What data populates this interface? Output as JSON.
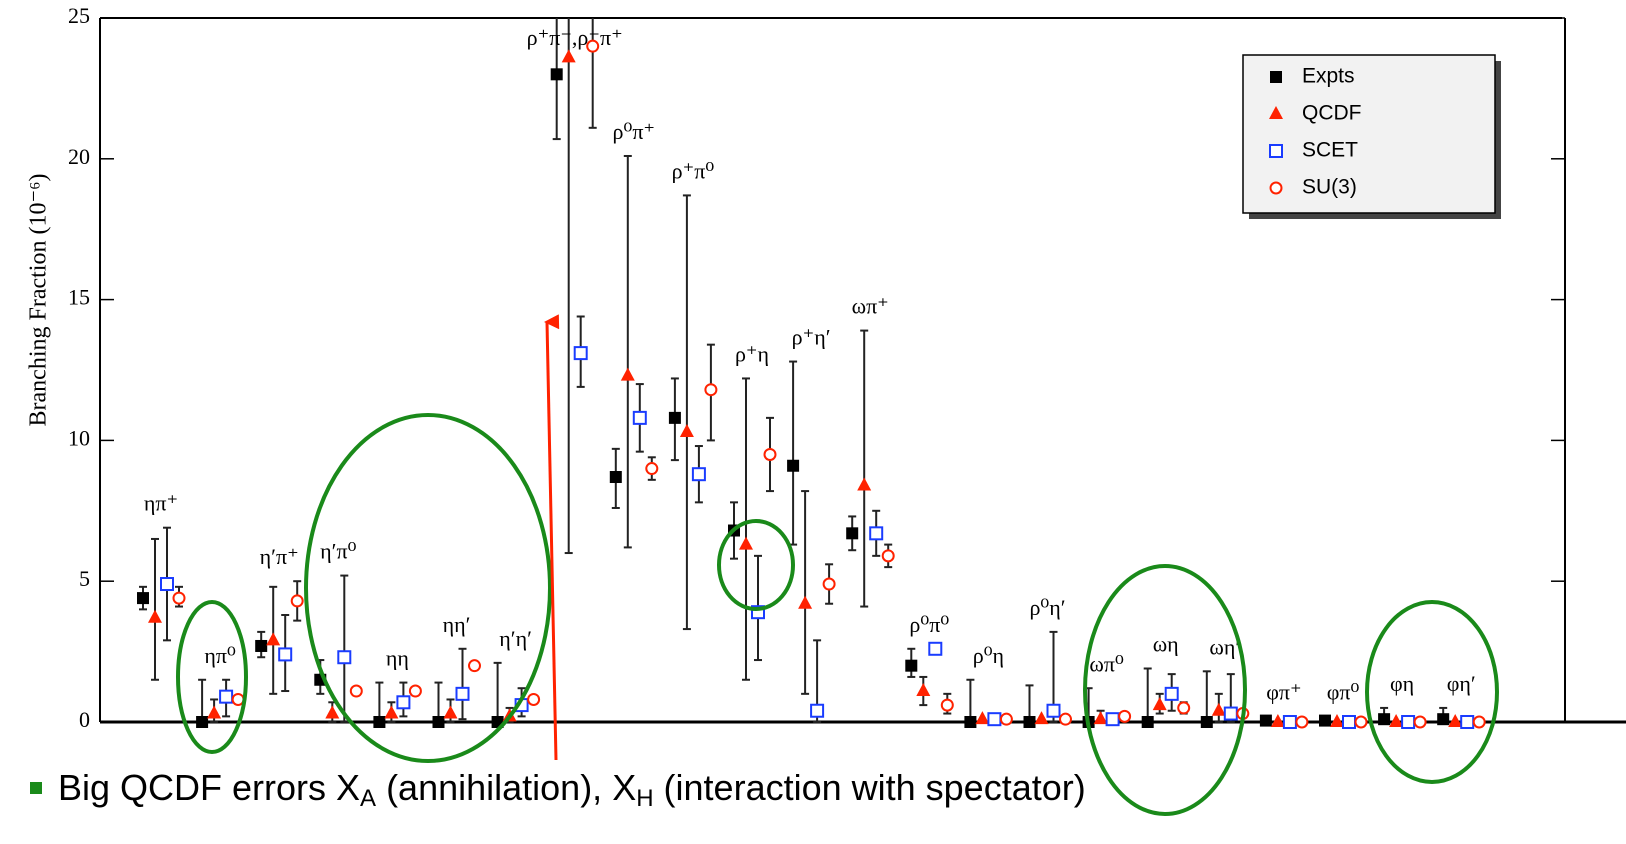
{
  "chart_data": {
    "type": "scatter",
    "y_label": "Branching Fraction (10⁻⁶)",
    "ylim": [
      0,
      25
    ],
    "yticks": [
      0,
      5,
      10,
      15,
      20,
      25
    ],
    "legend": "upper right",
    "categories": [
      "ηπ⁺",
      "ηπ⁰",
      "η′π⁺",
      "η′π⁰",
      "ηη",
      "ηη′",
      "η′η′",
      "ρ⁺π⁻,ρ⁻π⁺",
      "ρ⁰π⁺",
      "ρ⁺π⁰",
      "ρ⁺η",
      "ρ⁺η′",
      "ωπ⁺",
      "ρ⁰π⁰",
      "ρ⁰η",
      "ρ⁰η′",
      "ωπ⁰",
      "ωη",
      "ωη′",
      "φπ⁺",
      "φπ⁰",
      "φη",
      "φη′"
    ],
    "series": [
      {
        "name": "Expts",
        "color": "#000000",
        "marker": "square",
        "values": [
          4.4,
          0,
          2.7,
          1.5,
          0,
          0,
          0,
          23.0,
          8.7,
          10.8,
          6.8,
          9.1,
          6.7,
          2.0,
          0,
          0,
          0,
          0,
          0,
          0.05,
          0.05,
          0.1,
          0.1
        ],
        "err_low": [
          4.0,
          0,
          2.3,
          1.0,
          0,
          0,
          0,
          20.7,
          7.6,
          9.3,
          5.8,
          6.3,
          6.1,
          1.6,
          0,
          0,
          0,
          0,
          0,
          0,
          0,
          0,
          0
        ],
        "err_high": [
          4.8,
          1.5,
          3.2,
          2.2,
          1.4,
          1.4,
          2.1,
          25.3,
          9.7,
          12.2,
          7.8,
          12.8,
          7.3,
          2.6,
          1.5,
          1.3,
          1.2,
          1.9,
          1.8,
          0.2,
          0.2,
          0.5,
          0.5
        ]
      },
      {
        "name": "QCDF",
        "color": "#ff2200",
        "marker": "triangle",
        "values": [
          3.7,
          0.3,
          2.9,
          0.3,
          0.3,
          0.3,
          0.2,
          23.6,
          12.3,
          10.3,
          6.3,
          4.2,
          8.4,
          1.1,
          0.1,
          0.1,
          0.1,
          0.6,
          0.4,
          0,
          0,
          0,
          0
        ],
        "err_low": [
          1.5,
          0,
          1.0,
          0,
          0,
          0,
          0,
          6.0,
          6.2,
          3.3,
          1.5,
          1.0,
          4.1,
          0.6,
          null,
          null,
          0,
          0.3,
          0,
          null,
          null,
          null,
          null
        ],
        "err_high": [
          6.5,
          0.8,
          4.8,
          0.7,
          0.7,
          0.8,
          0.5,
          27,
          20.1,
          18.7,
          12.2,
          8.2,
          13.9,
          1.6,
          null,
          null,
          0.4,
          1.0,
          1.0,
          null,
          null,
          null,
          null
        ]
      },
      {
        "name": "SCET",
        "color": "#1a3cff",
        "marker": "open-square",
        "values": [
          4.9,
          0.9,
          2.4,
          2.3,
          0.7,
          1.0,
          0.6,
          13.1,
          10.8,
          8.8,
          3.9,
          0.4,
          6.7,
          2.6,
          0.1,
          0.4,
          0.1,
          1.0,
          0.3,
          0,
          0,
          0,
          0
        ],
        "err_low": [
          2.9,
          0.2,
          1.1,
          0,
          0.2,
          0.1,
          0.2,
          11.9,
          9.6,
          7.8,
          2.2,
          0,
          5.9,
          null,
          null,
          0,
          null,
          0.4,
          0,
          null,
          null,
          null,
          null
        ],
        "err_high": [
          6.9,
          1.5,
          3.8,
          5.2,
          1.4,
          2.6,
          1.2,
          14.4,
          12.0,
          9.8,
          5.9,
          2.9,
          7.5,
          null,
          null,
          3.2,
          null,
          1.7,
          1.7,
          null,
          null,
          null,
          null
        ]
      },
      {
        "name": "SU(3)",
        "color": "#ff2200",
        "marker": "circle",
        "values": [
          4.4,
          0.8,
          4.3,
          1.1,
          1.1,
          2.0,
          0.8,
          24.0,
          9.0,
          11.8,
          9.5,
          4.9,
          5.9,
          0.6,
          0.1,
          0.1,
          0.2,
          0.5,
          0.3,
          0,
          0,
          0,
          0
        ],
        "err_low": [
          4.1,
          null,
          3.6,
          null,
          null,
          null,
          null,
          21.1,
          8.6,
          10.0,
          8.2,
          4.2,
          5.5,
          0.3,
          null,
          null,
          null,
          0.3,
          null,
          null,
          null,
          null,
          null
        ],
        "err_high": [
          4.8,
          null,
          5.0,
          null,
          null,
          null,
          null,
          27,
          9.4,
          13.4,
          10.8,
          5.6,
          6.3,
          1.0,
          null,
          null,
          null,
          0.7,
          null,
          null,
          null,
          null,
          null
        ]
      }
    ],
    "bullet": [
      "Big QCDF errors X",
      "A",
      " (annihilation), X",
      "H",
      " (interaction with spectator)"
    ]
  }
}
